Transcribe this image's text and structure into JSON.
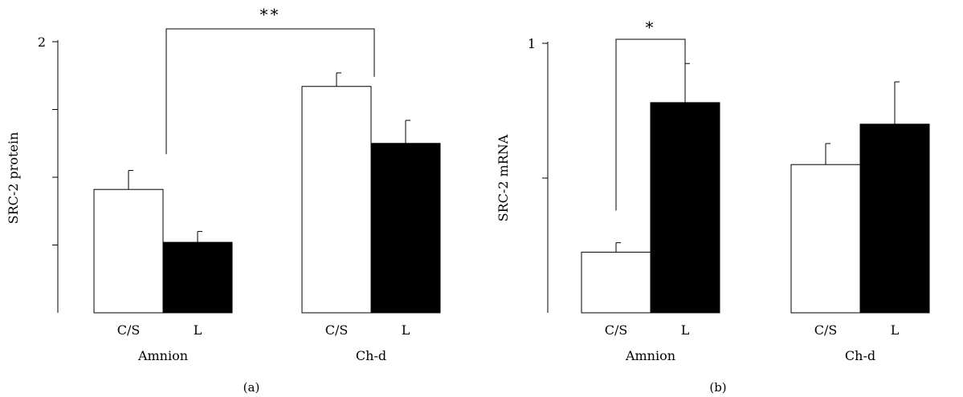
{
  "chart_data": [
    {
      "type": "bar",
      "panel_label": "(a)",
      "ylabel": "SRC-2 protein",
      "ylim": [
        0,
        2
      ],
      "yticks": [
        0.5,
        1,
        1.5,
        2
      ],
      "ytick_labels": [
        "",
        "",
        "",
        "2"
      ],
      "groups": [
        "Amnion",
        "Ch-d"
      ],
      "categories": [
        "C/S",
        "L"
      ],
      "series": [
        {
          "fill": "open",
          "color": "#ffffff",
          "values": [
            0.91,
            1.67
          ],
          "errors": [
            0.14,
            0.1
          ]
        },
        {
          "fill": "filled",
          "color": "#000000",
          "values": [
            0.52,
            1.25
          ],
          "errors": [
            0.08,
            0.17
          ]
        }
      ],
      "significance": [
        {
          "label": "**",
          "from": {
            "group": 0,
            "bar": 0
          },
          "to": {
            "group": 1,
            "bar": 0
          }
        }
      ]
    },
    {
      "type": "bar",
      "panel_label": "(b)",
      "ylabel": "SRC-2 mRNA",
      "ylim": [
        0,
        1
      ],
      "yticks": [
        0.5,
        1
      ],
      "ytick_labels": [
        "",
        "1"
      ],
      "groups": [
        "Amnion",
        "Ch-d"
      ],
      "categories": [
        "C/S",
        "L"
      ],
      "series": [
        {
          "fill": "open",
          "color": "#ffffff",
          "values": [
            0.225,
            0.55
          ],
          "errors": [
            0.035,
            0.078
          ]
        },
        {
          "fill": "filled",
          "color": "#000000",
          "values": [
            0.78,
            0.7
          ],
          "errors": [
            0.145,
            0.157
          ]
        }
      ],
      "significance": [
        {
          "label": "*",
          "from": {
            "group": 0,
            "bar": 0
          },
          "to": {
            "group": 0,
            "bar": 1
          }
        }
      ]
    }
  ]
}
